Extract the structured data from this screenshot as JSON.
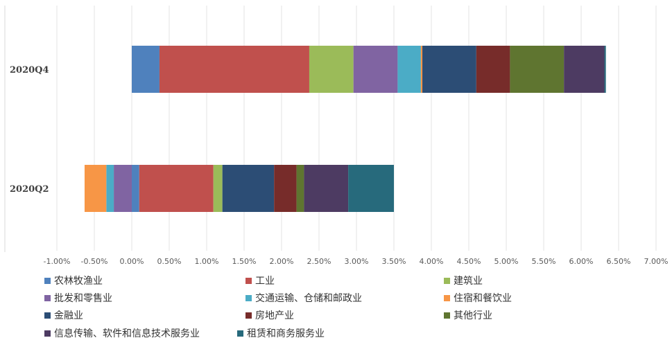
{
  "chart_data": {
    "type": "bar",
    "orientation": "horizontal",
    "stacked": true,
    "categories": [
      "2020Q4",
      "2020Q2"
    ],
    "xlim": [
      -0.01,
      0.07
    ],
    "x_ticks": [
      -0.01,
      -0.005,
      0,
      0.005,
      0.01,
      0.015,
      0.02,
      0.025,
      0.03,
      0.035,
      0.04,
      0.045,
      0.05,
      0.055,
      0.06,
      0.065,
      0.07
    ],
    "x_tick_labels": [
      "-1.00%",
      "-0.50%",
      "0.00%",
      "0.50%",
      "1.00%",
      "1.50%",
      "2.00%",
      "2.50%",
      "3.00%",
      "3.50%",
      "4.00%",
      "4.50%",
      "5.00%",
      "5.50%",
      "6.00%",
      "6.50%",
      "7.00%"
    ],
    "grid": "vertical",
    "legend_position": "bottom",
    "series": [
      {
        "name": "农林牧渔业",
        "color": "#4F81BD",
        "values": [
          0.0037,
          0.001
        ]
      },
      {
        "name": "工业",
        "color": "#C0504D",
        "values": [
          0.02,
          0.0099
        ]
      },
      {
        "name": "建筑业",
        "color": "#9BBB59",
        "values": [
          0.0059,
          0.0012
        ]
      },
      {
        "name": "批发和零售业",
        "color": "#8064A2",
        "values": [
          0.0059,
          -0.0024
        ]
      },
      {
        "name": "交通运输、仓储和邮政业",
        "color": "#4BACC6",
        "values": [
          0.0031,
          -0.001
        ]
      },
      {
        "name": "住宿和餐饮业",
        "color": "#F79646",
        "values": [
          0.0002,
          -0.0029
        ]
      },
      {
        "name": "金融业",
        "color": "#2C4D75",
        "values": [
          0.0072,
          0.0069
        ]
      },
      {
        "name": "房地产业",
        "color": "#772C2A",
        "values": [
          0.0045,
          0.003
        ]
      },
      {
        "name": "其他行业",
        "color": "#5F7530",
        "values": [
          0.0072,
          0.001
        ]
      },
      {
        "name": "信息传输、软件和信息技术服务业",
        "color": "#4D3B62",
        "values": [
          0.0054,
          0.0059
        ]
      },
      {
        "name": "租赁和商务服务业",
        "color": "#276A7C",
        "values": [
          0.0002,
          0.0061
        ]
      }
    ]
  }
}
